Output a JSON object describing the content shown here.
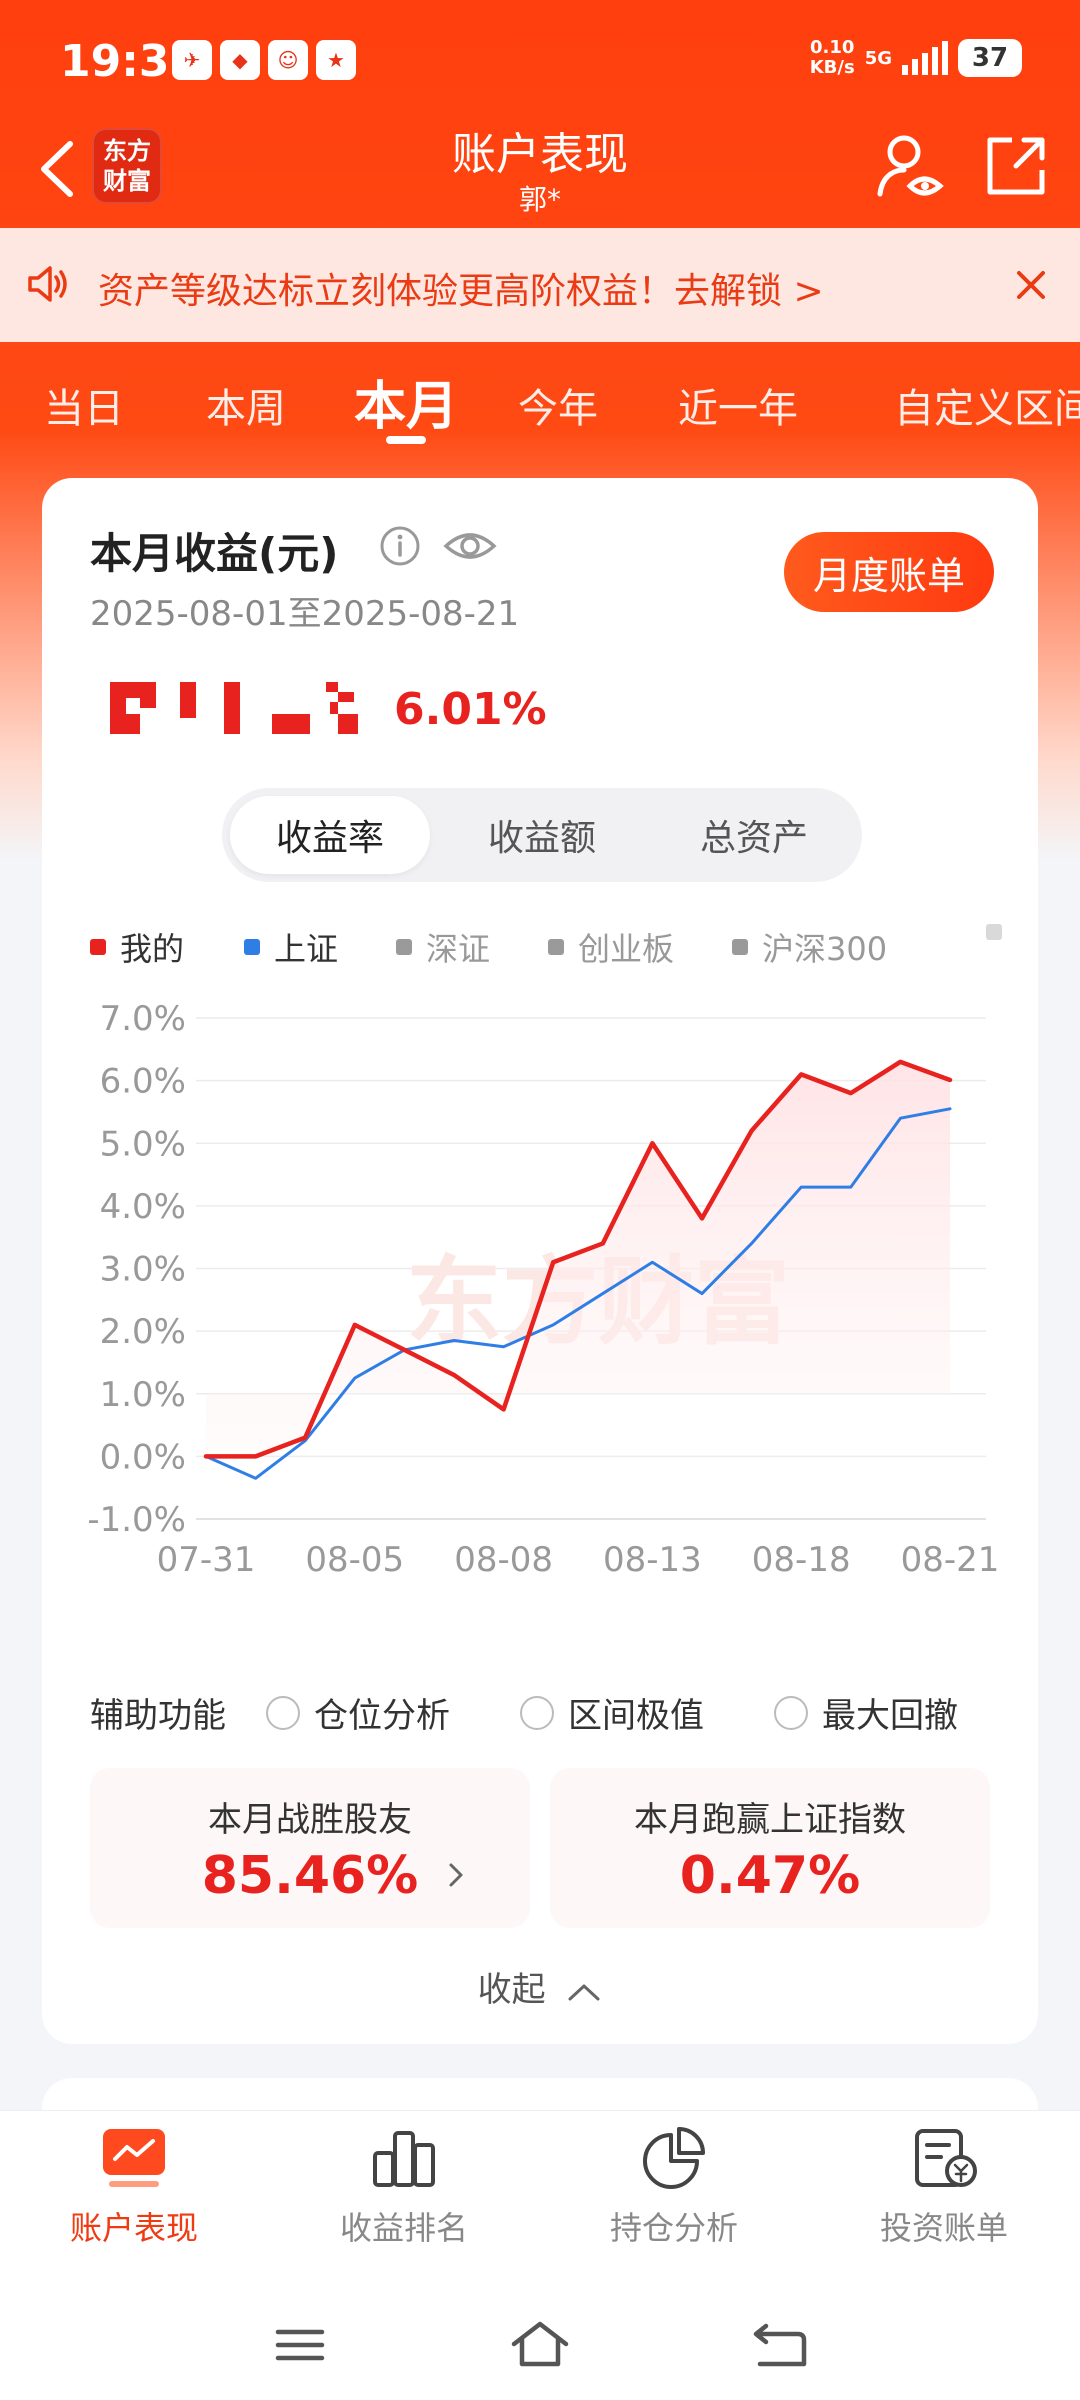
{
  "status_bar": {
    "time": "19:31",
    "net_speed_value": "0.10",
    "net_speed_unit": "KB/s",
    "signal_label": "5G",
    "battery": "37"
  },
  "header": {
    "brand_line1": "东方",
    "brand_line2": "财富",
    "title": "账户表现",
    "subtitle": "郭*"
  },
  "banner": {
    "text": "资产等级达标立刻体验更高阶权益！去解锁 >"
  },
  "tabs": [
    "当日",
    "本周",
    "本月",
    "今年",
    "近一年",
    "自定义区间"
  ],
  "active_tab": "本月",
  "summary": {
    "title": "本月收益(元)",
    "date_range": "2025-08-01至2025-08-21",
    "monthly_bill_label": "月度账单",
    "return_pct": "6.01%"
  },
  "segments": [
    "收益率",
    "收益额",
    "总资产"
  ],
  "legend": [
    {
      "name": "我的",
      "color": "#e8221e",
      "on": true
    },
    {
      "name": "上证",
      "color": "#2f7ee6",
      "on": true
    },
    {
      "name": "深证",
      "color": "#9a9a9a",
      "on": false
    },
    {
      "name": "创业板",
      "color": "#9a9a9a",
      "on": false
    },
    {
      "name": "沪深300",
      "color": "#9a9a9a",
      "on": false
    }
  ],
  "chart_data": {
    "type": "line",
    "x": [
      "07-31",
      "08-01",
      "08-04",
      "08-05",
      "08-06",
      "08-07",
      "08-08",
      "08-11",
      "08-12",
      "08-13",
      "08-14",
      "08-15",
      "08-18",
      "08-19",
      "08-20",
      "08-21"
    ],
    "x_tick_labels": [
      "07-31",
      "08-05",
      "08-08",
      "08-13",
      "08-18",
      "08-21"
    ],
    "y_tick_labels": [
      "7.0%",
      "6.0%",
      "5.0%",
      "4.0%",
      "3.0%",
      "2.0%",
      "1.0%",
      "0.0%",
      "-1.0%"
    ],
    "ylim": [
      -1.0,
      7.0
    ],
    "series": [
      {
        "name": "我的",
        "color": "#e8221e",
        "values": [
          0.0,
          0.0,
          0.3,
          2.1,
          1.7,
          1.3,
          0.75,
          3.1,
          3.4,
          5.0,
          3.8,
          5.2,
          6.1,
          5.8,
          6.3,
          6.01
        ]
      },
      {
        "name": "上证",
        "color": "#2f7ee6",
        "values": [
          0.0,
          -0.35,
          0.25,
          1.25,
          1.7,
          1.85,
          1.75,
          2.1,
          2.6,
          3.1,
          2.6,
          3.4,
          4.3,
          4.3,
          5.4,
          5.55
        ]
      }
    ],
    "watermark": "东方财富",
    "grid": true
  },
  "aux": {
    "label": "辅助功能",
    "options": [
      "仓位分析",
      "区间极值",
      "最大回撤"
    ]
  },
  "stats": [
    {
      "label": "本月战胜股友",
      "value": "85.46%"
    },
    {
      "label": "本月跑赢上证指数",
      "value": "0.47%"
    }
  ],
  "collapse_label": "收起",
  "bottom_nav": [
    {
      "label": "账户表现",
      "icon": "chart-monitor-icon",
      "active": true
    },
    {
      "label": "收益排名",
      "icon": "bar-ranking-icon",
      "active": false
    },
    {
      "label": "持仓分析",
      "icon": "pie-chart-icon",
      "active": false
    },
    {
      "label": "投资账单",
      "icon": "bill-yen-icon",
      "active": false
    }
  ]
}
